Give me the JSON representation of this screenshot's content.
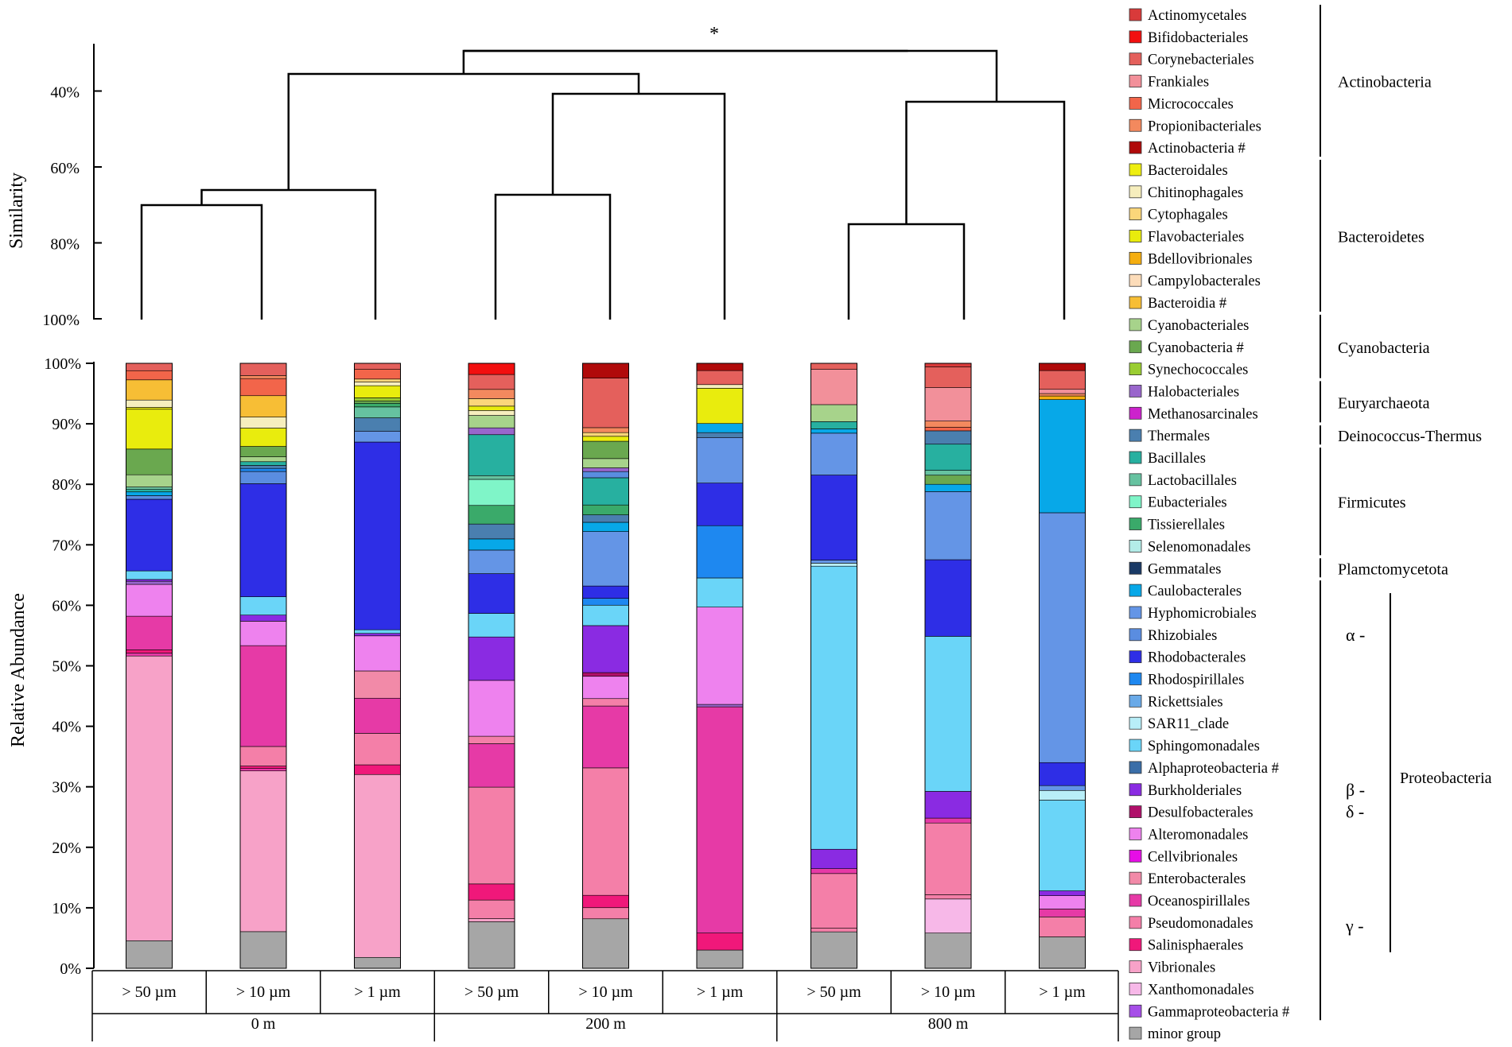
{
  "dendrogram": {
    "ylabel": "Similarity",
    "ticks": [
      "40%",
      "60%",
      "80%",
      "100%"
    ],
    "tick_values": [
      40,
      60,
      80,
      100
    ],
    "significance_mark": "*"
  },
  "colors": {
    "Actinomycetales": "#d93a3a",
    "Bifidobacteriales": "#f20f0f",
    "Corynebacteriales": "#e4605c",
    "Frankiales": "#f2909a",
    "Micrococcales": "#f2654a",
    "Propionibacteriales": "#f3895e",
    "Actinobacteria #": "#b00a0a",
    "Bacteroidales": "#eeee10",
    "Chitinophagales": "#f6eebd",
    "Cytophagales": "#fbd67a",
    "Flavobacteriales": "#e9ec0d",
    "Bdellovibrionales": "#f5ae10",
    "Campylobacterales": "#fcdcb9",
    "Bacteroidia #": "#f7be35",
    "Cyanobacteriales": "#a7d38b",
    "Cyanobacteria #": "#6aa84f",
    "Synechococcales": "#9acd32",
    "Halobacteriales": "#9966cc",
    "Methanosarcinales": "#cc22cc",
    "Thermales": "#4a7faf",
    "Bacillales": "#27b0a0",
    "Lactobacillales": "#66c2a0",
    "Eubacteriales": "#7ff5c8",
    "Tissierellales": "#3aaa6a",
    "Selenomonadales": "#b3ece8",
    "Gemmatales": "#1a3a66",
    "Caulobacterales": "#07a8e8",
    "Hyphomicrobiales": "#6495e6",
    "Rhizobiales": "#5a8de0",
    "Rhodobacterales": "#2e2ee6",
    "Rhodospirillales": "#1e88f0",
    "Rickettsiales": "#6aaae8",
    "SAR11_clade": "#b8eef8",
    "Sphingomonadales": "#6ad5f8",
    "Alphaproteobacteria #": "#3a6ea8",
    "Burkholderiales": "#8a2be2",
    "Desulfobacterales": "#b0106a",
    "Alteromonadales": "#ee82ee",
    "Cellvibrionales": "#e60ee6",
    "Enterobacterales": "#f28aa8",
    "Oceanospirillales": "#e63aa6",
    "Pseudomonadales": "#f47fa8",
    "Salinisphaerales": "#f0187a",
    "Vibrionales": "#f7a2c8",
    "Xanthomonadales": "#f7b8e8",
    "Gammaproteobacteria #": "#a64ee8",
    "minor group": "#a6a6a6"
  },
  "legend": {
    "items": [
      "Actinomycetales",
      "Bifidobacteriales",
      "Corynebacteriales",
      "Frankiales",
      "Micrococcales",
      "Propionibacteriales",
      "Actinobacteria #",
      "Bacteroidales",
      "Chitinophagales",
      "Cytophagales",
      "Flavobacteriales",
      "Bdellovibrionales",
      "Campylobacterales",
      "Bacteroidia #",
      "Cyanobacteriales",
      "Cyanobacteria #",
      "Synechococcales",
      "Halobacteriales",
      "Methanosarcinales",
      "Thermales",
      "Bacillales",
      "Lactobacillales",
      "Eubacteriales",
      "Tissierellales",
      "Selenomonadales",
      "Gemmatales",
      "Caulobacterales",
      "Hyphomicrobiales",
      "Rhizobiales",
      "Rhodobacterales",
      "Rhodospirillales",
      "Rickettsiales",
      "SAR11_clade",
      "Sphingomonadales",
      "Alphaproteobacteria #",
      "Burkholderiales",
      "Desulfobacterales",
      "Alteromonadales",
      "Cellvibrionales",
      "Enterobacterales",
      "Oceanospirillales",
      "Pseudomonadales",
      "Salinisphaerales",
      "Vibrionales",
      "Xanthomonadales",
      "Gammaproteobacteria #",
      "minor group"
    ],
    "phyla": [
      {
        "name": "Actinobacteria",
        "from": 0,
        "to": 6
      },
      {
        "name": "Bacteroidetes",
        "from": 7,
        "to": 13
      },
      {
        "name": "Cyanobacteria",
        "from": 14,
        "to": 16
      },
      {
        "name": "Euryarchaeota",
        "from": 17,
        "to": 18
      },
      {
        "name": "Deinococcus-Thermus",
        "from": 19,
        "to": 19
      },
      {
        "name": "Firmicutes",
        "from": 20,
        "to": 24
      },
      {
        "name": "Plamctomycetota",
        "from": 25,
        "to": 25
      },
      {
        "name": "Proteobacteria",
        "from": 26,
        "to": 45
      }
    ],
    "subclasses": [
      {
        "name": "α -",
        "from": 26,
        "to": 34
      },
      {
        "name": "β -",
        "from": 35,
        "to": 35
      },
      {
        "name": "δ -",
        "from": 36,
        "to": 36
      },
      {
        "name": "γ -",
        "from": 37,
        "to": 45
      }
    ]
  },
  "chart_data": {
    "type": "bar",
    "stacked": true,
    "ylabel": "Relative Abundance",
    "ylim": [
      0,
      100
    ],
    "yticks": [
      "0%",
      "10%",
      "20%",
      "30%",
      "40%",
      "50%",
      "60%",
      "70%",
      "80%",
      "90%",
      "100%"
    ],
    "categories": [
      "> 50 µm",
      "> 10 µm",
      "> 1 µm",
      "> 50 µm",
      "> 10 µm",
      "> 1 µm",
      "> 50 µm",
      "> 10 µm",
      "> 1 µm"
    ],
    "groups": [
      {
        "name": "0 m",
        "from": 0,
        "to": 2
      },
      {
        "name": "200 m",
        "from": 3,
        "to": 5
      },
      {
        "name": "800 m",
        "from": 6,
        "to": 8
      }
    ],
    "bars": [
      [
        [
          "minor group",
          4.5
        ],
        [
          "Vibrionales",
          46.5
        ],
        [
          "Oceanospirillales",
          0.5
        ],
        [
          "Salinisphaerales",
          0.5
        ],
        [
          "Oceanospirillales",
          5.5
        ],
        [
          "Alteromonadales",
          5.2
        ],
        [
          "Halobacteriales",
          0.5
        ],
        [
          "Burkholderiales",
          0.3
        ],
        [
          "Sphingomonadales",
          1.4
        ],
        [
          "Rhodobacterales",
          11.7
        ],
        [
          "Rhizobiales",
          0.6
        ],
        [
          "Caulobacterales",
          0.6
        ],
        [
          "Bacillales",
          0.4
        ],
        [
          "Lactobacillales",
          0.4
        ],
        [
          "Cyanobacteriales",
          2.0
        ],
        [
          "Cyanobacteria #",
          4.2
        ],
        [
          "Flavobacteriales",
          6.5
        ],
        [
          "Bacteroidales",
          0.3
        ],
        [
          "Chitinophagales",
          1.2
        ],
        [
          "Bacteroidia #",
          3.3
        ],
        [
          "Micrococcales",
          1.5
        ],
        [
          "Corynebacteriales",
          1.2
        ]
      ],
      [
        [
          "minor group",
          6.0
        ],
        [
          "Vibrionales",
          26.3
        ],
        [
          "Oceanospirillales",
          0.4
        ],
        [
          "Salinisphaerales",
          0.4
        ],
        [
          "Pseudomonadales",
          3.2
        ],
        [
          "Oceanospirillales",
          16.5
        ],
        [
          "Alteromonadales",
          4.0
        ],
        [
          "Burkholderiales",
          1.0
        ],
        [
          "Sphingomonadales",
          3.0
        ],
        [
          "Rhodobacterales",
          18.5
        ],
        [
          "Rhizobiales",
          2.0
        ],
        [
          "Rhodospirillales",
          0.5
        ],
        [
          "Thermales",
          0.5
        ],
        [
          "Bacillales",
          0.6
        ],
        [
          "Cyanobacteriales",
          0.8
        ],
        [
          "Cyanobacteria #",
          1.7
        ],
        [
          "Flavobacteriales",
          3.0
        ],
        [
          "Chitinophagales",
          1.8
        ],
        [
          "Bacteroidia #",
          3.5
        ],
        [
          "Micrococcales",
          2.8
        ],
        [
          "Propionibacteriales",
          0.5
        ],
        [
          "Corynebacteriales",
          2.0
        ]
      ],
      [
        [
          "minor group",
          1.8
        ],
        [
          "Vibrionales",
          30.2
        ],
        [
          "Salinisphaerales",
          1.6
        ],
        [
          "Pseudomonadales",
          5.2
        ],
        [
          "Oceanospirillales",
          5.8
        ],
        [
          "Enterobacterales",
          4.5
        ],
        [
          "Alteromonadales",
          5.8
        ],
        [
          "Burkholderiales",
          0.4
        ],
        [
          "Sphingomonadales",
          0.6
        ],
        [
          "Rhodobacterales",
          31.0
        ],
        [
          "Hyphomicrobiales",
          1.8
        ],
        [
          "Thermales",
          2.2
        ],
        [
          "Lactobacillales",
          1.8
        ],
        [
          "Tissierellales",
          0.6
        ],
        [
          "Cyanobacteria #",
          0.4
        ],
        [
          "Synechococcales",
          0.5
        ],
        [
          "Flavobacteriales",
          2.0
        ],
        [
          "Chitinophagales",
          0.6
        ],
        [
          "Cytophagales",
          0.5
        ],
        [
          "Micrococcales",
          1.6
        ],
        [
          "Corynebacteriales",
          1.0
        ]
      ],
      [
        [
          "minor group",
          7.5
        ],
        [
          "Vibrionales",
          0.5
        ],
        [
          "Pseudomonadales",
          3.0
        ],
        [
          "Salinisphaerales",
          2.6
        ],
        [
          "Pseudomonadales",
          15.6
        ],
        [
          "Oceanospirillales",
          7.0
        ],
        [
          "Pseudomonadales",
          1.2
        ],
        [
          "Alteromonadales",
          9.0
        ],
        [
          "Burkholderiales",
          7.0
        ],
        [
          "Sphingomonadales",
          3.8
        ],
        [
          "Rhodobacterales",
          6.4
        ],
        [
          "Hyphomicrobiales",
          3.8
        ],
        [
          "Caulobacterales",
          1.8
        ],
        [
          "Thermales",
          2.4
        ],
        [
          "Tissierellales",
          3.0
        ],
        [
          "Eubacteriales",
          4.2
        ],
        [
          "Lactobacillales",
          0.6
        ],
        [
          "Bacillales",
          6.6
        ],
        [
          "Halobacteriales",
          1.1
        ],
        [
          "Cyanobacteriales",
          2.0
        ],
        [
          "Chitinophagales",
          0.8
        ],
        [
          "Flavobacteriales",
          0.7
        ],
        [
          "Cytophagales",
          1.2
        ],
        [
          "Propionibacteriales",
          1.5
        ],
        [
          "Corynebacteriales",
          2.4
        ],
        [
          "Bifidobacteriales",
          1.8
        ]
      ],
      [
        [
          "minor group",
          8.0
        ],
        [
          "Pseudomonadales",
          1.8
        ],
        [
          "Salinisphaerales",
          2.0
        ],
        [
          "Pseudomonadales",
          20.6
        ],
        [
          "Oceanospirillales",
          10.0
        ],
        [
          "Pseudomonadales",
          1.2
        ],
        [
          "Alteromonadales",
          3.6
        ],
        [
          "Desulfobacterales",
          0.6
        ],
        [
          "Burkholderiales",
          7.6
        ],
        [
          "Sphingomonadales",
          3.3
        ],
        [
          "Rhodospirillales",
          1.1
        ],
        [
          "Rhodobacterales",
          2.0
        ],
        [
          "Hyphomicrobiales",
          8.8
        ],
        [
          "Caulobacterales",
          1.5
        ],
        [
          "Thermales",
          1.2
        ],
        [
          "Tissierellales",
          1.6
        ],
        [
          "Bacillales",
          4.4
        ],
        [
          "Rhizobiales",
          1.0
        ],
        [
          "Halobacteriales",
          0.6
        ],
        [
          "Cyanobacteriales",
          1.5
        ],
        [
          "Cyanobacteria #",
          2.8
        ],
        [
          "Flavobacteriales",
          0.8
        ],
        [
          "Cytophagales",
          0.6
        ],
        [
          "Propionibacteriales",
          0.8
        ],
        [
          "Corynebacteriales",
          8.0
        ],
        [
          "Actinobacteria #",
          2.4
        ]
      ],
      [
        [
          "minor group",
          3.0
        ],
        [
          "Salinisphaerales",
          2.8
        ],
        [
          "Oceanospirillales",
          37.2
        ],
        [
          "Halobacteriales",
          0.4
        ],
        [
          "Alteromonadales",
          16.0
        ],
        [
          "Sphingomonadales",
          4.8
        ],
        [
          "Rhodospirillales",
          8.6
        ],
        [
          "Rhodobacterales",
          7.0
        ],
        [
          "Hyphomicrobiales",
          7.5
        ],
        [
          "Thermales",
          0.8
        ],
        [
          "Caulobacterales",
          1.5
        ],
        [
          "Flavobacteriales",
          5.8
        ],
        [
          "Chitinophagales",
          0.6
        ],
        [
          "Corynebacteriales",
          2.3
        ],
        [
          "Actinobacteria #",
          1.2
        ]
      ],
      [
        [
          "minor group",
          6.0
        ],
        [
          "Pseudomonadales",
          0.6
        ],
        [
          "Pseudomonadales",
          9.0
        ],
        [
          "Oceanospirillales",
          0.8
        ],
        [
          "Burkholderiales",
          3.2
        ],
        [
          "Sphingomonadales",
          46.6
        ],
        [
          "SAR11_clade",
          0.5
        ],
        [
          "Hyphomicrobiales",
          0.5
        ],
        [
          "Rhodobacterales",
          14.0
        ],
        [
          "Hyphomicrobiales",
          6.9
        ],
        [
          "Caulobacterales",
          0.7
        ],
        [
          "Bacillales",
          1.2
        ],
        [
          "Cyanobacteriales",
          2.8
        ],
        [
          "Frankiales",
          5.8
        ],
        [
          "Corynebacteriales",
          1.0
        ]
      ],
      [
        [
          "minor group",
          5.8
        ],
        [
          "Xanthomonadales",
          5.6
        ],
        [
          "Pseudomonadales",
          0.7
        ],
        [
          "Pseudomonadales",
          11.8
        ],
        [
          "Oceanospirillales",
          0.8
        ],
        [
          "Burkholderiales",
          4.4
        ],
        [
          "Sphingomonadales",
          25.5
        ],
        [
          "Rhodobacterales",
          12.6
        ],
        [
          "Hyphomicrobiales",
          11.2
        ],
        [
          "Caulobacterales",
          1.2
        ],
        [
          "Cyanobacteria #",
          1.5
        ],
        [
          "Lactobacillales",
          0.8
        ],
        [
          "Bacillales",
          4.3
        ],
        [
          "Thermales",
          2.2
        ],
        [
          "Micrococcales",
          0.6
        ],
        [
          "Propionibacteriales",
          1.0
        ],
        [
          "Frankiales",
          5.5
        ],
        [
          "Corynebacteriales",
          3.4
        ],
        [
          "Actinomycetales",
          0.6
        ]
      ],
      [
        [
          "minor group",
          5.2
        ],
        [
          "Pseudomonadales",
          3.3
        ],
        [
          "Oceanospirillales",
          1.3
        ],
        [
          "Alteromonadales",
          2.2
        ],
        [
          "Burkholderiales",
          0.8
        ],
        [
          "Sphingomonadales",
          15.0
        ],
        [
          "SAR11_clade",
          1.6
        ],
        [
          "Hyphomicrobiales",
          0.8
        ],
        [
          "Rhodobacterales",
          3.8
        ],
        [
          "Hyphomicrobiales",
          41.3
        ],
        [
          "Caulobacterales",
          18.7
        ],
        [
          "Bdellovibrionales",
          0.6
        ],
        [
          "Propionibacteriales",
          0.4
        ],
        [
          "Frankiales",
          0.7
        ],
        [
          "Corynebacteriales",
          3.1
        ],
        [
          "Actinobacteria #",
          1.2
        ]
      ]
    ]
  }
}
